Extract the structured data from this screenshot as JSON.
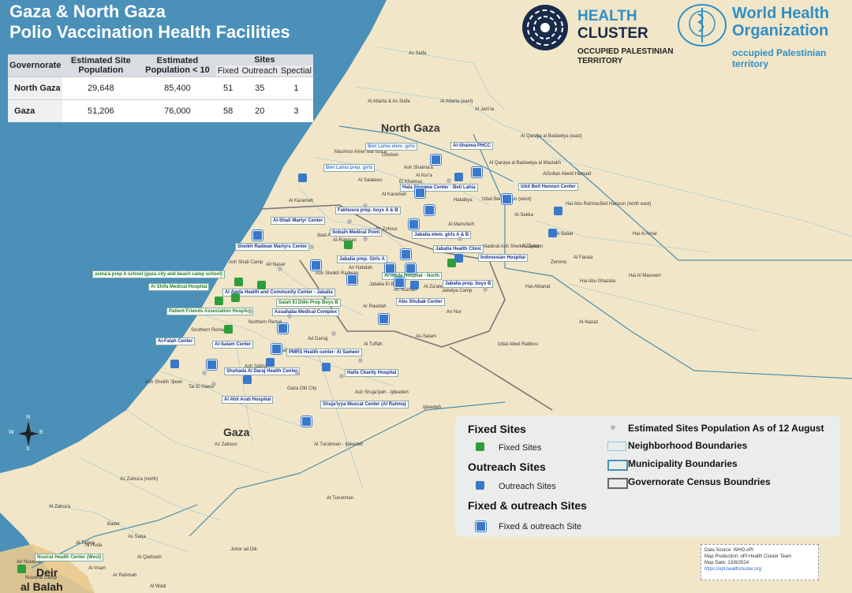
{
  "title": {
    "line1": "Gaza & North Gaza",
    "line2": "Polio Vaccination Health Facilities"
  },
  "table": {
    "headers": {
      "governorate": "Governorate",
      "pop": "Estimated Site Population",
      "pop10": "Estimated Population < 10",
      "sites": "Sites",
      "fixed": "Fixed",
      "outreach": "Outreach",
      "spectial": "Spectial"
    },
    "rows": [
      {
        "governorate": "North Gaza",
        "pop": "29,648",
        "pop10": "85,400",
        "fixed": "51",
        "outreach": "35",
        "spectial": "1"
      },
      {
        "governorate": "Gaza",
        "pop": "51,206",
        "pop10": "76,000",
        "fixed": "58",
        "outreach": "20",
        "spectial": "3"
      }
    ]
  },
  "logos": {
    "hc_line1": "HEALTH",
    "hc_line2": "CLUSTER",
    "hc_sub1": "OCCUPIED PALESTINIAN",
    "hc_sub2": "TERRITORY",
    "who_line1": "World Health",
    "who_line2": "Organization",
    "who_sub1": "occupied Palestinian",
    "who_sub2": "territory"
  },
  "map_labels": {
    "north_gaza": "North Gaza",
    "gaza": "Gaza",
    "deir1": "Deir",
    "deir2": "al Balah",
    "neighborhoods": [
      "As Siafa",
      "Al Attarta & As Siafa",
      "Al Attarta (east)",
      "Al Jam'ia",
      "Al Qaraya al Badawiya (east)",
      "Mashroo Amer wal Isra'a",
      "Ghobon",
      "Al Qaraya al Badawiya al Maslakh",
      "Al Salateen",
      "Ash Shaima'a",
      "Al Kur'a",
      "El Khamsa",
      "Al Karameh",
      "Hatabiya",
      "'Izbat Beit Hanun (west)",
      "AlSoltan Abedl Hamaid",
      "Beit Hanoun (north east)",
      "Hai Abu Rahma",
      "Al-Sekka",
      "Al Karameh",
      "Al-Rahman",
      "Az Zohour",
      "Al Manshieh",
      "Ibad Ar-Rahman",
      "Madinat Ash Sheikh Zayed",
      "Al Balad",
      "Hai Al Amal",
      "Ash Shati Camp",
      "An Naser",
      "Ash Sheikh Radwan",
      "An Nahdah",
      "Al-Zatoon",
      "Al Farata",
      "Zemmo",
      "Jabalia El Balad",
      "An Nuzhah",
      "Jabalya Camp",
      "Al-Za'ater",
      "Hai Al Masreen",
      "Hai-Albanat",
      "Hai Abu Ghazala",
      "Ar Rawdah",
      "An Nur",
      "As-Salam",
      "Al-Nazaz",
      "Izbat Abed Rabbou",
      "Southern Remal",
      "Northern Remal",
      "Al Tuffah",
      "Ad Darraj",
      "Az Zaitoun Center",
      "Ash Sabra",
      "Az Zaitoun",
      "Gaza Old City",
      "Ash Shuja'iyeh - Ijdeedeh",
      "Ijdeedeh",
      "Tal El Hawa",
      "Ash Sheikh 'Ijleen",
      "At Turukman - Ijdeedeh",
      "Az Zahra'a (north)",
      "Al Zahra'a",
      "At Turukman",
      "Juhor ad Dik",
      "Bader",
      "As Saqa",
      "Al Taqwa",
      "Al Huda",
      "Al Qadisiah",
      "Al Imam",
      "Ar Rahmah",
      "Al Wadi",
      "An Nuseirat",
      "Nuseirat Camp"
    ]
  },
  "facilities": [
    {
      "name": "Biet Lahia elem. girls",
      "kind": "c"
    },
    {
      "name": "Biet Lahia prep. girls",
      "kind": "c"
    },
    {
      "name": "Al-Shaima PHCC",
      "kind": "b"
    },
    {
      "name": "Hala Shawwa Center - Beit Lahia",
      "kind": "b"
    },
    {
      "name": "Izbit Beit Hanoun Center",
      "kind": "b"
    },
    {
      "name": "Fakhoura prep. boys A & B",
      "kind": "b"
    },
    {
      "name": "Al-Shati Martyr Center",
      "kind": "b"
    },
    {
      "name": "Sobaih Medical Point",
      "kind": "b"
    },
    {
      "name": "Jabalia elem. girls A & B",
      "kind": "b"
    },
    {
      "name": "Sheikh Radwan Martyrs Center",
      "kind": "b"
    },
    {
      "name": "Jabalia Health Clinic",
      "kind": "b"
    },
    {
      "name": "Indonesian Hospital",
      "kind": "b"
    },
    {
      "name": "Jabalia prep. Girls A",
      "kind": "b"
    },
    {
      "name": "asma'a prep A school (gaza city and beach camp school)",
      "kind": "g"
    },
    {
      "name": "Al Awda Hospital - North",
      "kind": "g"
    },
    {
      "name": "Jabalia prep. boys B",
      "kind": "b"
    },
    {
      "name": "Al Shifa Medical Hospital",
      "kind": "g"
    },
    {
      "name": "Al Awda Health and Community Center - Jabalia",
      "kind": "b"
    },
    {
      "name": "Abu Shubak Center",
      "kind": "b"
    },
    {
      "name": "Salah El Ddin Prep Boys B",
      "kind": "g"
    },
    {
      "name": "Patient Friends Association Hospital",
      "kind": "g"
    },
    {
      "name": "Assahaba Medical Complex",
      "kind": "b"
    },
    {
      "name": "Al-Falah Center",
      "kind": "b"
    },
    {
      "name": "Al-Salam Center",
      "kind": "b"
    },
    {
      "name": "PMRS Health center- Al Sameer",
      "kind": "b"
    },
    {
      "name": "Shuhada Al Daraj Health Center",
      "kind": "b"
    },
    {
      "name": "Haifa Charity Hospital",
      "kind": "b"
    },
    {
      "name": "Al Ahli Arab Hospital",
      "kind": "b"
    },
    {
      "name": "Shuja'iyya Muscat Center (Al Rahma)",
      "kind": "b"
    },
    {
      "name": "Nusirat Health Center (West)",
      "kind": "g"
    }
  ],
  "legend": {
    "fixed_header": "Fixed Sites",
    "fixed_item": "Fixed Sites",
    "outreach_header": "Outreach Sites",
    "outreach_item": "Outreach Sites",
    "both_header": "Fixed & outreach Sites",
    "both_item": "Fixed & outreach Site",
    "pop": "Estimated Sites Population As of 12 August",
    "neighborhood": "Neighborhood Boundaries",
    "municipality": "Municipality Boundaries",
    "governorate": "Governorate Census Boundries"
  },
  "credit": {
    "l1": "Data Source: WHO oPt",
    "l2": "Map Production: oPt Health Cluster Team",
    "l3": "Map Date: 13/8/2024",
    "l4": "https://opt.healthcluster.org"
  },
  "compass": {
    "n": "N",
    "e": "E",
    "s": "S",
    "w": "W"
  },
  "colors": {
    "sea": "#4a90b8",
    "land": "#f2e6c8",
    "deir": "#e9c98e",
    "fixed": "#2e9e3a",
    "outreach": "#3a78c9",
    "municipality": "#4a8fb0"
  }
}
